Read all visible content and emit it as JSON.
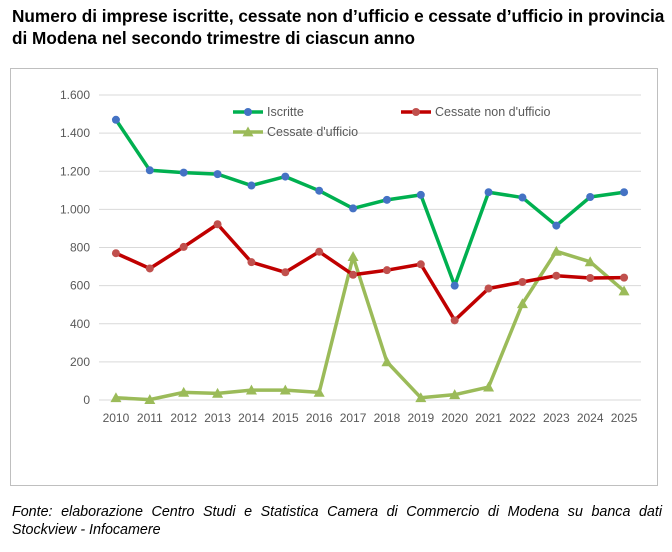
{
  "title": "Numero di imprese iscritte, cessate non d’ufficio e cessate d’ufficio in provincia di Modena nel secondo trimestre di ciascun anno",
  "source": "Fonte: elaborazione Centro Studi e Statistica Camera di Commercio di Modena su banca dati Stockview - Infocamere",
  "chart_data": {
    "type": "line",
    "title": "",
    "xlabel": "",
    "ylabel": "",
    "x": [
      "2010",
      "2011",
      "2012",
      "2013",
      "2014",
      "2015",
      "2016",
      "2017",
      "2018",
      "2019",
      "2020",
      "2021",
      "2022",
      "2023",
      "2024",
      "2025"
    ],
    "ylim": [
      0,
      1600
    ],
    "yticks": [
      0,
      200,
      400,
      600,
      800,
      1000,
      1200,
      1400,
      1600
    ],
    "ytick_labels": [
      "0",
      "200",
      "400",
      "600",
      "800",
      "1.000",
      "1.200",
      "1.400",
      "1.600"
    ],
    "grid": true,
    "legend_position": "top",
    "series": [
      {
        "name": "Iscritte",
        "color": "#00b050",
        "marker": "circle",
        "marker_color": "#4472c4",
        "values": [
          1470,
          1205,
          1193,
          1185,
          1125,
          1172,
          1098,
          1005,
          1050,
          1076,
          600,
          1090,
          1062,
          915,
          1065,
          1090
        ]
      },
      {
        "name": "Cessate non d'ufficio",
        "color": "#c00000",
        "marker": "circle",
        "marker_color": "#c0504d",
        "values": [
          770,
          690,
          803,
          922,
          723,
          670,
          778,
          657,
          681,
          712,
          418,
          585,
          619,
          652,
          640,
          642
        ]
      },
      {
        "name": "Cessate d'ufficio",
        "color": "#9bbb59",
        "marker": "triangle",
        "marker_color": "#9bbb59",
        "values": [
          12,
          2,
          40,
          35,
          52,
          52,
          40,
          752,
          200,
          12,
          28,
          68,
          505,
          780,
          725,
          572
        ]
      }
    ]
  }
}
